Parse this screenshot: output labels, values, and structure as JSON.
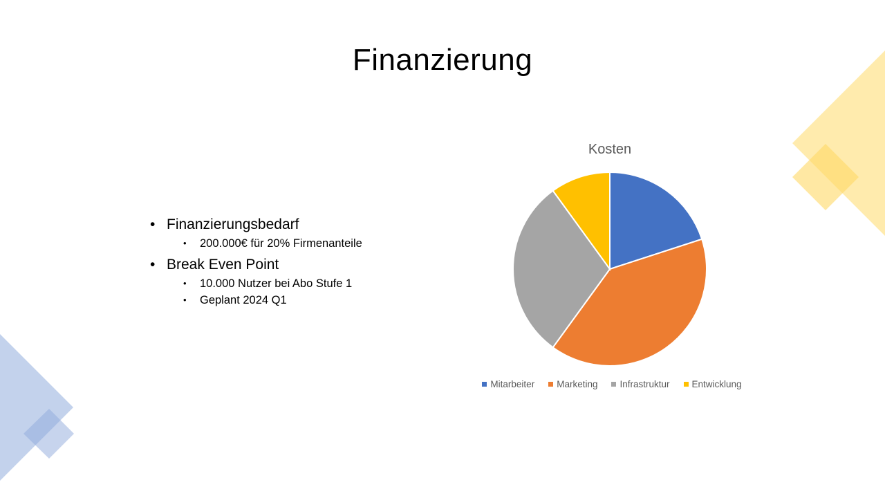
{
  "slide": {
    "title": "Finanzierung",
    "bullets": [
      {
        "text": "Finanzierungsbedarf",
        "sub": [
          "200.000€ für 20% Firmenanteile"
        ]
      },
      {
        "text": "Break Even Point",
        "sub": [
          "10.000 Nutzer bei Abo Stufe 1",
          "Geplant 2024 Q1"
        ]
      }
    ],
    "bullet_glyph": "•"
  },
  "chart_data": {
    "type": "pie",
    "title": "Kosten",
    "categories": [
      "Mitarbeiter",
      "Marketing",
      "Infrastruktur",
      "Entwicklung"
    ],
    "values": [
      20,
      40,
      30,
      10
    ],
    "colors": [
      "#4472C4",
      "#ED7D31",
      "#A5A5A5",
      "#FFC000"
    ],
    "legend_position": "bottom"
  }
}
